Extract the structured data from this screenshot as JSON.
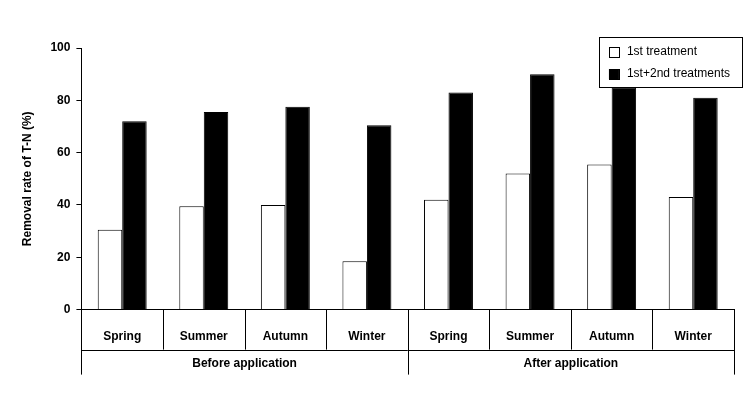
{
  "chart_data": {
    "type": "bar",
    "y_label": "Removal rate of T-N (%)",
    "groups": [
      {
        "name": "Before application",
        "categories": [
          "Spring",
          "Summer",
          "Autumn",
          "Winter"
        ]
      },
      {
        "name": "After application",
        "categories": [
          "Spring",
          "Summer",
          "Autumn",
          "Winter"
        ]
      }
    ],
    "series": [
      {
        "name": "1st treatment",
        "color": "#ffffff",
        "values": [
          30.5,
          39.5,
          40,
          18.5,
          42,
          52,
          55.5,
          43
        ]
      },
      {
        "name": "1st+2nd treatments",
        "color": "#000000",
        "values": [
          72,
          75.5,
          77.5,
          70.5,
          83,
          90,
          85,
          81
        ]
      }
    ],
    "ylim": [
      0,
      100
    ],
    "yticks": [
      0,
      20,
      40,
      60,
      80,
      100
    ],
    "grid": false,
    "legend": "upper right"
  }
}
